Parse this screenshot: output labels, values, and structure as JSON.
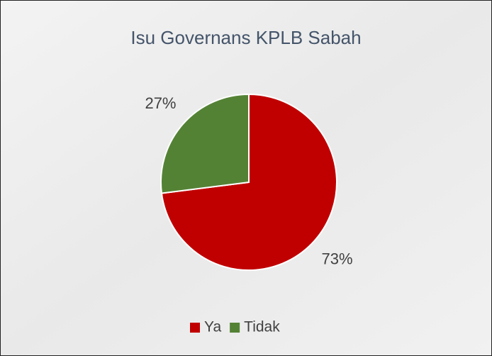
{
  "chart_data": {
    "type": "pie",
    "title": "Isu Governans KPLB Sabah",
    "categories": [
      "Ya",
      "Tidak"
    ],
    "values": [
      73,
      27
    ],
    "value_labels": [
      "73%",
      "27%"
    ],
    "colors": [
      "#c00000",
      "#548235"
    ],
    "legend": "bottom"
  }
}
